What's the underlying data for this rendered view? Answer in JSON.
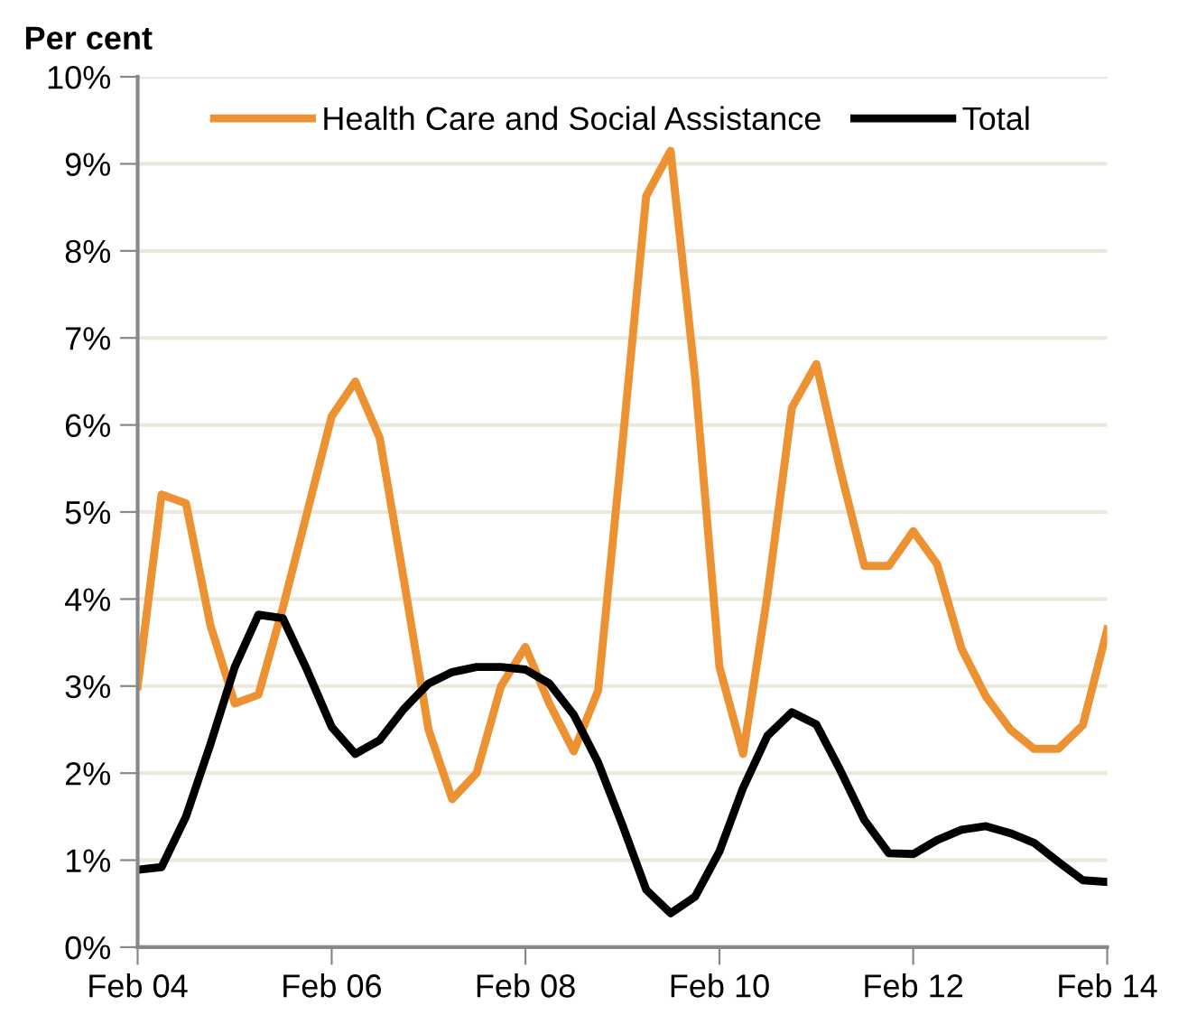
{
  "chart_data": {
    "type": "line",
    "ylabel": "Per cent",
    "x": [
      "2004-02",
      "2004-05",
      "2004-08",
      "2004-11",
      "2005-02",
      "2005-05",
      "2005-08",
      "2005-11",
      "2006-02",
      "2006-05",
      "2006-08",
      "2006-11",
      "2007-02",
      "2007-05",
      "2007-08",
      "2007-11",
      "2008-02",
      "2008-05",
      "2008-08",
      "2008-11",
      "2009-02",
      "2009-05",
      "2009-08",
      "2009-11",
      "2010-02",
      "2010-05",
      "2010-08",
      "2010-11",
      "2011-02",
      "2011-05",
      "2011-08",
      "2011-11",
      "2012-02",
      "2012-05",
      "2012-08",
      "2012-11",
      "2013-02",
      "2013-05",
      "2013-08",
      "2013-11",
      "2014-02"
    ],
    "series": [
      {
        "name": "Health Care and Social Assistance",
        "color": "#ed9232",
        "values": [
          3.0,
          5.2,
          5.1,
          3.7,
          2.8,
          2.9,
          3.9,
          5.0,
          6.1,
          6.5,
          5.85,
          4.2,
          2.5,
          1.7,
          2.0,
          3.0,
          3.45,
          2.8,
          2.25,
          2.95,
          5.8,
          8.63,
          9.15,
          6.55,
          3.22,
          2.22,
          4.05,
          6.2,
          6.7,
          5.5,
          4.38,
          4.38,
          4.78,
          4.4,
          3.43,
          2.88,
          2.5,
          2.28,
          2.28,
          2.55,
          3.65
        ]
      },
      {
        "name": "Total",
        "color": "#000000",
        "values": [
          0.89,
          0.92,
          1.5,
          2.33,
          3.22,
          3.82,
          3.78,
          3.18,
          2.53,
          2.22,
          2.38,
          2.74,
          3.03,
          3.16,
          3.22,
          3.22,
          3.19,
          3.03,
          2.67,
          2.12,
          1.4,
          0.66,
          0.39,
          0.58,
          1.1,
          1.83,
          2.43,
          2.7,
          2.56,
          2.04,
          1.46,
          1.08,
          1.07,
          1.23,
          1.35,
          1.39,
          1.31,
          1.2,
          0.98,
          0.77,
          0.75
        ]
      }
    ],
    "xlim": [
      "2004-02",
      "2014-02"
    ],
    "xticks": [
      {
        "value": "2004-02",
        "label": "Feb 04"
      },
      {
        "value": "2006-02",
        "label": "Feb 06"
      },
      {
        "value": "2008-02",
        "label": "Feb 08"
      },
      {
        "value": "2010-02",
        "label": "Feb 10"
      },
      {
        "value": "2012-02",
        "label": "Feb 12"
      },
      {
        "value": "2014-02",
        "label": "Feb 14"
      }
    ],
    "ylim": [
      0,
      10
    ],
    "yticks": [
      {
        "value": 0,
        "label": "0%"
      },
      {
        "value": 1,
        "label": "1%"
      },
      {
        "value": 2,
        "label": "2%"
      },
      {
        "value": 3,
        "label": "3%"
      },
      {
        "value": 4,
        "label": "4%"
      },
      {
        "value": 5,
        "label": "5%"
      },
      {
        "value": 6,
        "label": "6%"
      },
      {
        "value": 7,
        "label": "7%"
      },
      {
        "value": 8,
        "label": "8%"
      },
      {
        "value": 9,
        "label": "9%"
      },
      {
        "value": 10,
        "label": "10%"
      }
    ],
    "grid": "y",
    "legend": "top",
    "marker": "none",
    "line_style": "solid"
  }
}
